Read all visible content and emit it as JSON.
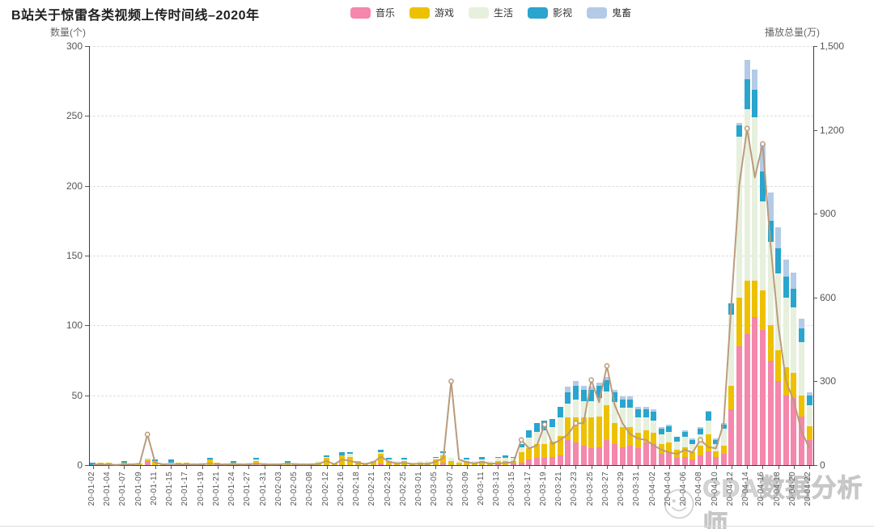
{
  "title": "B站关于惊雷各类视频上传时间线–2020年",
  "watermark": "CDA数据分析师",
  "chart_data": {
    "type": "bar",
    "stacked": true,
    "grid": true,
    "legend_position": "top-center",
    "left_axis": {
      "name": "数量(个)",
      "min": 0,
      "max": 300,
      "interval": 50
    },
    "right_axis": {
      "name": "播放总量(万)",
      "min": 0,
      "max": 1500,
      "interval": 300
    },
    "xlabel_every": 2,
    "categories": [
      "20-01-02",
      "20-01-03",
      "20-01-04",
      "20-01-05",
      "20-01-07",
      "20-01-08",
      "20-01-09",
      "20-01-10",
      "20-01-11",
      "20-01-13",
      "20-01-15",
      "20-01-16",
      "20-01-17",
      "20-01-18",
      "20-01-19",
      "20-01-20",
      "20-01-21",
      "20-01-22",
      "20-01-24",
      "20-01-25",
      "20-01-27",
      "20-01-29",
      "20-01-31",
      "20-02-01",
      "20-02-03",
      "20-02-04",
      "20-02-05",
      "20-02-06",
      "20-02-08",
      "20-02-10",
      "20-02-12",
      "20-02-14",
      "20-02-16",
      "20-02-17",
      "20-02-18",
      "20-02-19",
      "20-02-21",
      "20-02-22",
      "20-02-23",
      "20-02-24",
      "20-02-25",
      "20-02-27",
      "20-03-01",
      "20-03-03",
      "20-03-05",
      "20-03-06",
      "20-03-07",
      "20-03-08",
      "20-03-09",
      "20-03-10",
      "20-03-11",
      "20-03-12",
      "20-03-13",
      "20-03-14",
      "20-03-15",
      "20-03-16",
      "20-03-17",
      "20-03-18",
      "20-03-19",
      "20-03-20",
      "20-03-21",
      "20-03-22",
      "20-03-23",
      "20-03-24",
      "20-03-25",
      "20-03-26",
      "20-03-27",
      "20-03-28",
      "20-03-29",
      "20-03-30",
      "20-03-31",
      "20-04-01",
      "20-04-02",
      "20-04-03",
      "20-04-04",
      "20-04-05",
      "20-04-06",
      "20-04-07",
      "20-04-08",
      "20-04-09",
      "20-04-10",
      "20-04-11",
      "20-04-12",
      "20-04-13",
      "20-04-14",
      "20-04-15",
      "20-04-16",
      "20-04-17",
      "20-04-18",
      "20-04-19",
      "20-04-20",
      "20-04-21",
      "20-04-22"
    ],
    "series": [
      {
        "name": "音乐",
        "color": "#F586AC",
        "values": [
          0,
          0,
          0,
          0,
          0,
          0,
          0,
          3,
          0,
          0,
          0,
          0,
          0,
          0,
          0,
          0,
          1,
          0,
          0,
          0,
          0,
          1,
          0,
          0,
          0,
          0,
          0,
          0,
          0,
          0,
          0,
          0,
          0,
          0,
          0,
          0,
          0,
          1,
          0,
          0,
          0,
          0,
          0,
          0,
          0,
          2,
          0,
          0,
          0,
          0,
          0,
          0,
          1,
          0,
          1,
          2,
          4,
          5,
          5,
          6,
          7,
          18,
          16,
          14,
          12,
          13,
          18,
          15,
          13,
          14,
          12,
          16,
          15,
          8,
          9,
          5,
          6,
          4,
          7,
          10,
          6,
          8,
          40,
          85,
          94,
          106,
          97,
          75,
          60,
          50,
          48,
          35,
          18
        ]
      },
      {
        "name": "游戏",
        "color": "#EDC100",
        "values": [
          0,
          2,
          2,
          0,
          2,
          1,
          1,
          1,
          3,
          1,
          0,
          2,
          2,
          1,
          1,
          4,
          1,
          1,
          2,
          1,
          1,
          2,
          1,
          1,
          1,
          2,
          1,
          1,
          1,
          2,
          5,
          1,
          7,
          6,
          3,
          1,
          3,
          7,
          3,
          2,
          3,
          1,
          2,
          2,
          4,
          5,
          3,
          2,
          3,
          2,
          3,
          2,
          2,
          3,
          2,
          7,
          8,
          10,
          10,
          11,
          14,
          16,
          18,
          20,
          22,
          22,
          25,
          15,
          14,
          13,
          11,
          9,
          8,
          7,
          7,
          6,
          7,
          5,
          7,
          12,
          4,
          6,
          17,
          35,
          38,
          26,
          28,
          25,
          22,
          20,
          18,
          15,
          10
        ]
      },
      {
        "name": "生活",
        "color": "#E7F0DC",
        "values": [
          0,
          0,
          0,
          0,
          0,
          0,
          0,
          1,
          0,
          0,
          2,
          0,
          0,
          0,
          1,
          0,
          0,
          0,
          0,
          0,
          1,
          1,
          1,
          0,
          0,
          0,
          1,
          0,
          0,
          1,
          1,
          1,
          0,
          2,
          0,
          1,
          0,
          1,
          1,
          1,
          1,
          1,
          1,
          1,
          1,
          2,
          2,
          1,
          1,
          1,
          1,
          1,
          2,
          2,
          2,
          4,
          8,
          9,
          10,
          10,
          13,
          10,
          13,
          12,
          12,
          13,
          10,
          15,
          14,
          14,
          11,
          9,
          9,
          7,
          8,
          6,
          7,
          6,
          8,
          10,
          5,
          12,
          51,
          115,
          123,
          117,
          64,
          60,
          55,
          50,
          47,
          38,
          15
        ]
      },
      {
        "name": "影视",
        "color": "#29A5CE",
        "values": [
          2,
          0,
          0,
          0,
          1,
          0,
          0,
          0,
          1,
          0,
          2,
          0,
          0,
          0,
          0,
          1,
          0,
          0,
          1,
          0,
          0,
          1,
          0,
          0,
          0,
          1,
          0,
          0,
          0,
          0,
          1,
          0,
          2,
          1,
          0,
          0,
          0,
          2,
          1,
          0,
          1,
          0,
          0,
          0,
          1,
          1,
          0,
          0,
          1,
          0,
          2,
          0,
          1,
          2,
          1,
          2,
          5,
          6,
          7,
          6,
          8,
          8,
          10,
          8,
          8,
          9,
          8,
          7,
          6,
          6,
          6,
          6,
          6,
          4,
          4,
          3,
          4,
          3,
          4,
          6,
          3,
          3,
          8,
          8,
          21,
          20,
          21,
          15,
          18,
          15,
          13,
          10,
          7
        ]
      },
      {
        "name": "鬼畜",
        "color": "#B3CBE6",
        "values": [
          0,
          0,
          0,
          0,
          0,
          0,
          0,
          0,
          0,
          0,
          0,
          0,
          0,
          0,
          0,
          0,
          0,
          0,
          0,
          0,
          0,
          0,
          0,
          0,
          0,
          0,
          0,
          0,
          0,
          0,
          0,
          0,
          0,
          0,
          0,
          0,
          0,
          0,
          0,
          0,
          0,
          0,
          0,
          0,
          0,
          0,
          0,
          0,
          0,
          0,
          0,
          0,
          0,
          0,
          0,
          0,
          0,
          0,
          0,
          0,
          0,
          4,
          3,
          3,
          2,
          2,
          2,
          2,
          2,
          2,
          2,
          2,
          2,
          1,
          1,
          0,
          1,
          1,
          1,
          1,
          1,
          1,
          0,
          2,
          14,
          14,
          20,
          20,
          15,
          12,
          12,
          7,
          2
        ]
      }
    ],
    "line_series": {
      "name": "播放总量",
      "axis": "right",
      "type": "line",
      "color": "#BA9B7D",
      "values": [
        2,
        3,
        2,
        1,
        3,
        2,
        5,
        110,
        8,
        3,
        4,
        3,
        3,
        2,
        3,
        5,
        3,
        2,
        4,
        2,
        3,
        5,
        3,
        2,
        3,
        5,
        3,
        2,
        3,
        4,
        15,
        3,
        20,
        15,
        8,
        4,
        10,
        30,
        12,
        6,
        8,
        4,
        5,
        4,
        12,
        25,
        300,
        20,
        10,
        6,
        12,
        5,
        6,
        8,
        10,
        90,
        60,
        70,
        145,
        75,
        90,
        110,
        150,
        150,
        305,
        225,
        355,
        215,
        150,
        110,
        95,
        90,
        70,
        55,
        45,
        40,
        55,
        45,
        90,
        65,
        60,
        150,
        590,
        1005,
        1205,
        1030,
        1150,
        790,
        500,
        300,
        230,
        120,
        60
      ]
    }
  }
}
